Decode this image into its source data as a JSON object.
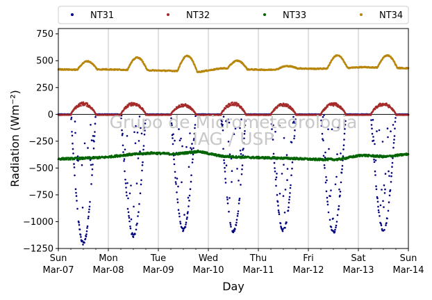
{
  "chart_data": {
    "type": "scatter",
    "title": "",
    "xlabel": "Day",
    "ylabel": "Radiation",
    "ylabel_unit": "(Wm⁻²)",
    "ylim": [
      -1250,
      800
    ],
    "yticks": [
      -1250,
      -1000,
      -750,
      -500,
      -250,
      0,
      250,
      500,
      750
    ],
    "xlim": [
      "2021-03-07",
      "2021-03-14"
    ],
    "xticks": [
      {
        "weekday": "Sun",
        "date": "Mar-07"
      },
      {
        "weekday": "Mon",
        "date": "Mar-08"
      },
      {
        "weekday": "Tue",
        "date": "Mar-09"
      },
      {
        "weekday": "Wed",
        "date": "Mar-10"
      },
      {
        "weekday": "Thu",
        "date": "Mar-11"
      },
      {
        "weekday": "Fri",
        "date": "Mar-12"
      },
      {
        "weekday": "Sat",
        "date": "Mar-13"
      },
      {
        "weekday": "Sun",
        "date": "Mar-14"
      }
    ],
    "grid": "vertical",
    "zero_line": true,
    "legend_position": "top",
    "watermark": [
      "Grupo de Micrometeorologia",
      "IAG / USP"
    ],
    "series": [
      {
        "name": "NT31",
        "color": "#00007f",
        "night": 0,
        "daily_peak": [
          -1200,
          -1130,
          -1080,
          -1090,
          -1080,
          -1100,
          -1080
        ]
      },
      {
        "name": "NT32",
        "color": "#a52a2a",
        "night": -5,
        "daily_peak": [
          110,
          110,
          95,
          110,
          100,
          105,
          105
        ]
      },
      {
        "name": "NT33",
        "color": "#006400",
        "baseline": [
          -415,
          -410,
          -400,
          -375,
          -360,
          -370,
          -345,
          -390,
          -400,
          -405,
          -410,
          -420,
          -420,
          -380,
          -395,
          -370
        ]
      },
      {
        "name": "NT34",
        "color": "#b8860b",
        "baseline": [
          420,
          415,
          420,
          415,
          410,
          405,
          395,
          430,
          420,
          415,
          430,
          425,
          430,
          440,
          435,
          430
        ],
        "daily_peak": [
          495,
          530,
          545,
          500,
          450,
          550,
          550
        ]
      }
    ]
  }
}
